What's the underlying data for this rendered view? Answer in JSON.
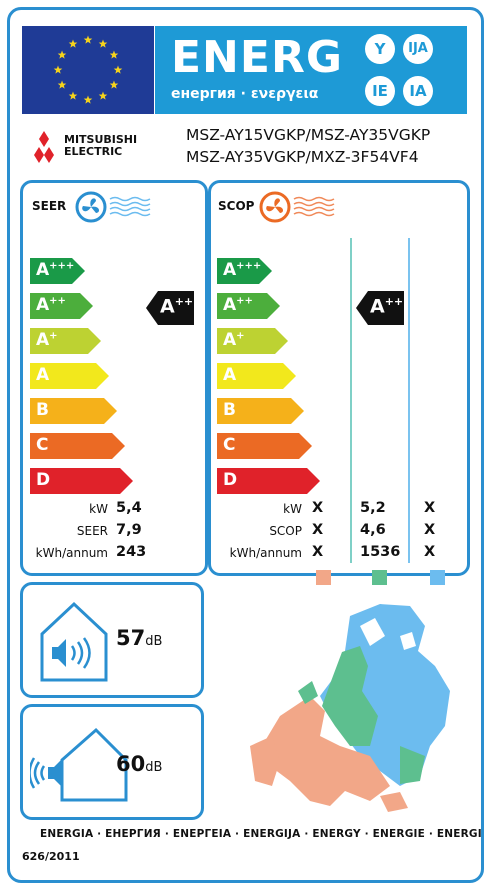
{
  "header": {
    "energy_title": "ENERG",
    "energy_subtitle": "енергия · ενεργεια",
    "lang_suffixes": [
      "Y",
      "IJA",
      "IE",
      "IA"
    ],
    "brand": "MITSUBISHI ELECTRIC",
    "brand_line1": "MITSUBISHI",
    "brand_line2": "ELECTRIC",
    "models_line1": "MSZ-AY15VGKP/MSZ-AY35VGKP",
    "models_line2": "MSZ-AY35VGKP/MXZ-3F54VF4"
  },
  "scale": [
    {
      "letter": "A",
      "sup": "+++",
      "color": "#1a9a48"
    },
    {
      "letter": "A",
      "sup": "++",
      "color": "#4cae3c"
    },
    {
      "letter": "A",
      "sup": "+",
      "color": "#bdd232"
    },
    {
      "letter": "A",
      "sup": "",
      "color": "#f2e81c"
    },
    {
      "letter": "B",
      "sup": "",
      "color": "#f5b11a"
    },
    {
      "letter": "C",
      "sup": "",
      "color": "#eb6a24"
    },
    {
      "letter": "D",
      "sup": "",
      "color": "#e0222a"
    }
  ],
  "seer": {
    "title": "SEER",
    "rating_letter": "A",
    "rating_sup": "++",
    "rows": [
      {
        "label": "kW",
        "value": "5,4"
      },
      {
        "label": "SEER",
        "value": "7,9"
      },
      {
        "label": "kWh/annum",
        "value": "243"
      }
    ]
  },
  "scop": {
    "title": "SCOP",
    "rating_letter": "A",
    "rating_sup": "++",
    "rows": [
      {
        "label": "kW",
        "col1": "X",
        "col2": "5,2",
        "col3": "X"
      },
      {
        "label": "SCOP",
        "col1": "X",
        "col2": "4,6",
        "col3": "X"
      },
      {
        "label": "kWh/annum",
        "col1": "X",
        "col2": "1536",
        "col3": "X"
      }
    ],
    "zone_colors": [
      "#f2a788",
      "#5dbf8f",
      "#6cbcef"
    ]
  },
  "noise": {
    "indoor_value": "57",
    "indoor_unit": "dB",
    "outdoor_value": "60",
    "outdoor_unit": "dB"
  },
  "footer": {
    "languages": "ENERGIA · ЕНЕРГИЯ · ΕΝΕΡΓΕΙΑ · ENERGIJA · ENERGY · ENERGIE · ENERGI",
    "regulation": "626/2011"
  }
}
